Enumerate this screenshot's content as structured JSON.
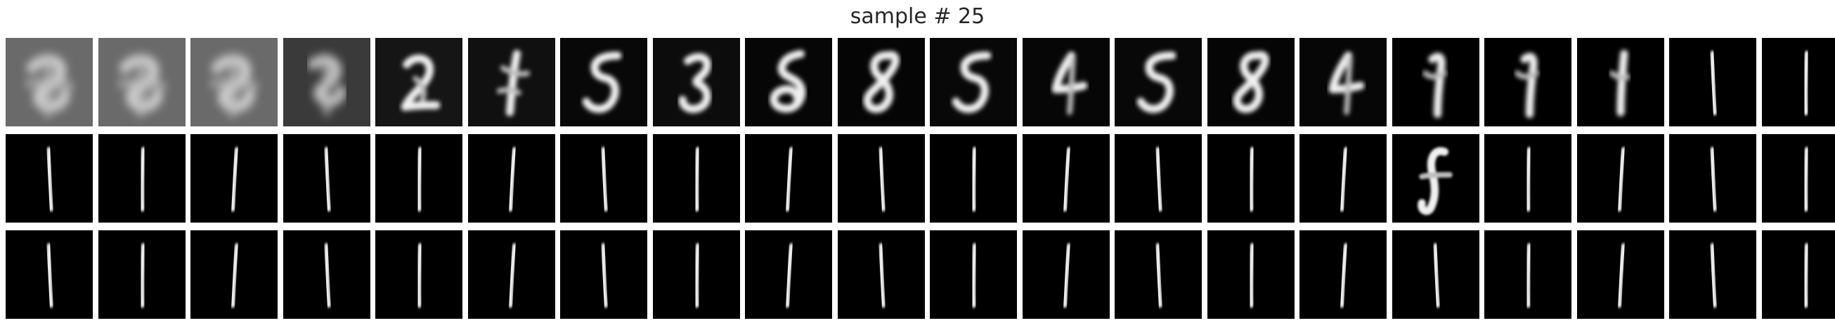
{
  "title": "sample # 25",
  "grid": {
    "rows": 3,
    "cols": 20,
    "glyphs": [
      [
        "blob-heavy",
        "blob-heavy",
        "blob-heavy",
        "blob-mid",
        "two-ish",
        "one-blur",
        "five",
        "three-ish",
        "five-loop",
        "eight",
        "five",
        "four-ish",
        "five",
        "eight",
        "four-ish",
        "one-hook",
        "one-hook",
        "one-faint",
        "one",
        "one"
      ],
      [
        "one",
        "one",
        "one",
        "one",
        "one",
        "one",
        "one",
        "one",
        "one",
        "one",
        "one",
        "one",
        "one",
        "one",
        "one",
        "f-shape",
        "one",
        "one",
        "one",
        "one"
      ],
      [
        "one",
        "one",
        "one",
        "one",
        "one",
        "one",
        "one",
        "one",
        "one",
        "one",
        "one",
        "one",
        "one",
        "one",
        "one",
        "one",
        "one",
        "one",
        "one",
        "one"
      ]
    ],
    "colors": {
      "background": "#000000",
      "stroke": "#f0f0f0",
      "gap": "#ffffff"
    }
  }
}
